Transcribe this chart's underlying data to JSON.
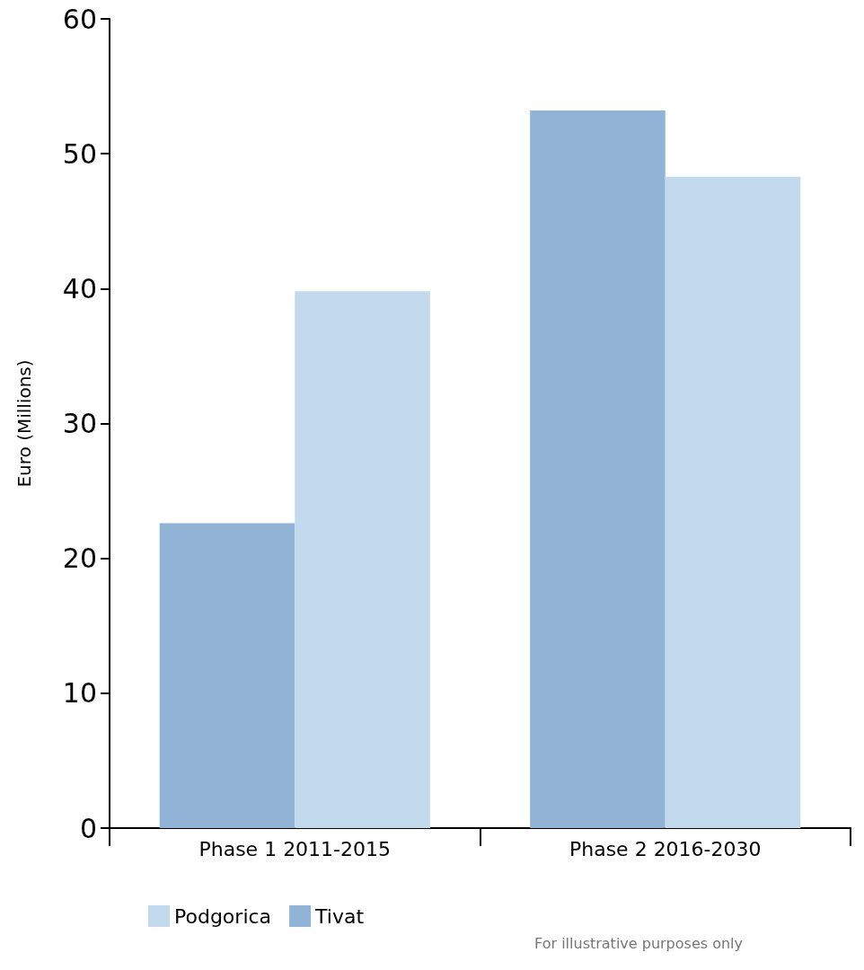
{
  "chart_data": {
    "type": "bar",
    "ylabel": "Euro (Millions)",
    "categories": [
      "Phase 1 2011-2015",
      "Phase 2 2016-2030"
    ],
    "series": [
      {
        "name": "Tivat",
        "color": "#91b4d6",
        "values": [
          22.6,
          53.2
        ]
      },
      {
        "name": "Podgorica",
        "color": "#c3daee",
        "values": [
          39.8,
          48.3
        ]
      }
    ],
    "ylim": [
      0,
      60
    ],
    "yticks": [
      0,
      10,
      20,
      30,
      40,
      50,
      60
    ],
    "grid": false,
    "legend": "bottom left",
    "annotations": [
      "For illustrative purposes only"
    ]
  }
}
